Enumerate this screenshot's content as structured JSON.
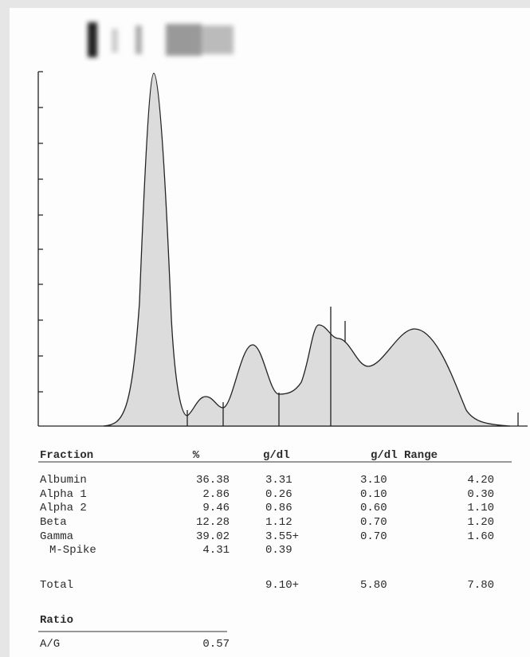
{
  "table": {
    "header": [
      "Fraction",
      "%",
      "g/dl",
      "g/dl Range"
    ],
    "rows": [
      {
        "name": "Albumin",
        "percent": "36.38",
        "gdl": "3.31",
        "low": "3.10",
        "high": "4.20"
      },
      {
        "name": "Alpha 1",
        "percent": "2.86",
        "gdl": "0.26",
        "low": "0.10",
        "high": "0.30"
      },
      {
        "name": "Alpha 2",
        "percent": "9.46",
        "gdl": "0.86",
        "low": "0.60",
        "high": "1.10"
      },
      {
        "name": "Beta",
        "percent": "12.28",
        "gdl": "1.12",
        "low": "0.70",
        "high": "1.20"
      },
      {
        "name": "Gamma",
        "percent": "39.02",
        "gdl": "3.55+",
        "low": "0.70",
        "high": "1.60"
      },
      {
        "name": "M-Spike",
        "percent": "4.31",
        "gdl": "0.39"
      }
    ],
    "total": {
      "name": "Total",
      "gdl": "9.10+",
      "low": "5.80",
      "high": "7.80"
    }
  },
  "ratio": {
    "title": "Ratio",
    "name": "A/G",
    "value": "0.57"
  }
}
